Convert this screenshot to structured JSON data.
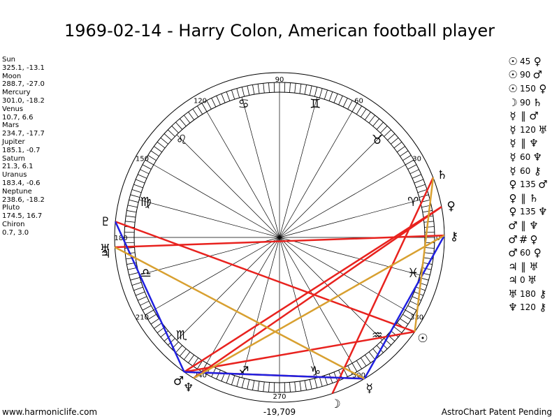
{
  "title": "1969-02-14 - Harry Colon, American football player",
  "planets": [
    {
      "name": "Sun",
      "pos": "325.1, -13.1"
    },
    {
      "name": "Moon",
      "pos": "288.7, -27.0"
    },
    {
      "name": "Mercury",
      "pos": "301.0, -18.2"
    },
    {
      "name": "Venus",
      "pos": "10.7, 6.6"
    },
    {
      "name": "Mars",
      "pos": "234.7, -17.7"
    },
    {
      "name": "Jupiter",
      "pos": "185.1, -0.7"
    },
    {
      "name": "Saturn",
      "pos": "21.3, 6.1"
    },
    {
      "name": "Uranus",
      "pos": "183.4, -0.6"
    },
    {
      "name": "Neptune",
      "pos": "238.6, -18.2"
    },
    {
      "name": "Pluto",
      "pos": "174.5, 16.7"
    },
    {
      "name": "Chiron",
      "pos": "0.7, 3.0"
    }
  ],
  "aspects": [
    {
      "p1": "☉",
      "angle": "45",
      "p2": "♀",
      "p1_color": "#000",
      "p2_color": "#000"
    },
    {
      "p1": "☉",
      "angle": "90",
      "p2": "♂",
      "p1_color": "#000",
      "p2_color": "#000"
    },
    {
      "p1": "☉",
      "angle": "150",
      "p2": "♀",
      "p1_color": "#000",
      "p2_color": "#000"
    },
    {
      "p1": "☽",
      "angle": "90",
      "p2": "♄",
      "p1_color": "#000",
      "p2_color": "#000"
    },
    {
      "p1": "☿",
      "angle": "∥",
      "p2": "♂",
      "p1_color": "#000",
      "p2_color": "#000"
    },
    {
      "p1": "☿",
      "angle": "120",
      "p2": "♅",
      "p1_color": "#000",
      "p2_color": "#000"
    },
    {
      "p1": "☿",
      "angle": "∥",
      "p2": "♆",
      "p1_color": "#000",
      "p2_color": "#000"
    },
    {
      "p1": "☿",
      "angle": "60",
      "p2": "♆",
      "p1_color": "#000",
      "p2_color": "#000"
    },
    {
      "p1": "☿",
      "angle": "60",
      "p2": "⚷",
      "p1_color": "#000",
      "p2_color": "#000"
    },
    {
      "p1": "♀",
      "angle": "135",
      "p2": "♂",
      "p1_color": "#000",
      "p2_color": "#000"
    },
    {
      "p1": "♀",
      "angle": "∥",
      "p2": "♄",
      "p1_color": "#000",
      "p2_color": "#000"
    },
    {
      "p1": "♀",
      "angle": "135",
      "p2": "♆",
      "p1_color": "#000",
      "p2_color": "#000"
    },
    {
      "p1": "♂",
      "angle": "∥",
      "p2": "♆",
      "p1_color": "#000",
      "p2_color": "#000"
    },
    {
      "p1": "♂",
      "angle": "#",
      "p2": "♀",
      "p1_color": "#000",
      "p2_color": "#000"
    },
    {
      "p1": "♂",
      "angle": "60",
      "p2": "♀",
      "p1_color": "#000",
      "p2_color": "#000"
    },
    {
      "p1": "♃",
      "angle": "∥",
      "p2": "♅",
      "p1_color": "#000",
      "p2_color": "#000"
    },
    {
      "p1": "♃",
      "angle": "0",
      "p2": "♅",
      "p1_color": "#000",
      "p2_color": "#000"
    },
    {
      "p1": "♅",
      "angle": "180",
      "p2": "⚷",
      "p1_color": "#000",
      "p2_color": "#000"
    },
    {
      "p1": "♆",
      "angle": "120",
      "p2": "⚷",
      "p1_color": "#000",
      "p2_color": "#000"
    }
  ],
  "wheel": {
    "degree_labels": [
      {
        "deg": 0,
        "text": "0"
      },
      {
        "deg": 30,
        "text": "30"
      },
      {
        "deg": 60,
        "text": "60"
      },
      {
        "deg": 90,
        "text": "90"
      },
      {
        "deg": 120,
        "text": "120"
      },
      {
        "deg": 150,
        "text": "150"
      },
      {
        "deg": 180,
        "text": "180"
      },
      {
        "deg": 210,
        "text": "210"
      },
      {
        "deg": 240,
        "text": "240"
      },
      {
        "deg": 270,
        "text": "270"
      },
      {
        "deg": 300,
        "text": "300"
      },
      {
        "deg": 330,
        "text": "330"
      }
    ],
    "signs": [
      {
        "deg": 15,
        "glyph": "♈"
      },
      {
        "deg": 45,
        "glyph": "♉"
      },
      {
        "deg": 75,
        "glyph": "♊"
      },
      {
        "deg": 105,
        "glyph": "♋"
      },
      {
        "deg": 135,
        "glyph": "♌"
      },
      {
        "deg": 165,
        "glyph": "♍"
      },
      {
        "deg": 195,
        "glyph": "♎"
      },
      {
        "deg": 225,
        "glyph": "♏"
      },
      {
        "deg": 255,
        "glyph": "♐"
      },
      {
        "deg": 285,
        "glyph": "♑"
      },
      {
        "deg": 315,
        "glyph": "♒"
      },
      {
        "deg": 345,
        "glyph": "♓"
      }
    ],
    "planet_glyphs": [
      {
        "name": "Sun",
        "glyph": "☉",
        "deg": 325.1
      },
      {
        "name": "Moon",
        "glyph": "☽",
        "deg": 288.7
      },
      {
        "name": "Mercury",
        "glyph": "☿",
        "deg": 301.0
      },
      {
        "name": "Venus",
        "glyph": "♀",
        "deg": 10.7
      },
      {
        "name": "Mars",
        "glyph": "♂",
        "deg": 234.7
      },
      {
        "name": "Jupiter",
        "glyph": "♃",
        "deg": 185.1
      },
      {
        "name": "Saturn",
        "glyph": "♄",
        "deg": 21.3
      },
      {
        "name": "Uranus",
        "glyph": "♅",
        "deg": 183.4
      },
      {
        "name": "Neptune",
        "glyph": "♆",
        "deg": 238.6
      },
      {
        "name": "Pluto",
        "glyph": "♇",
        "deg": 174.5
      },
      {
        "name": "Chiron",
        "glyph": "⚷",
        "deg": 0.7
      }
    ],
    "aspect_lines": [
      {
        "a": 21.3,
        "b": 288.7,
        "color": "#e8221e"
      },
      {
        "a": 10.7,
        "b": 234.7,
        "color": "#e8221e"
      },
      {
        "a": 10.7,
        "b": 238.6,
        "color": "#e8221e"
      },
      {
        "a": 0.7,
        "b": 183.4,
        "color": "#e8221e"
      },
      {
        "a": 174.5,
        "b": 325.1,
        "color": "#e8221e"
      },
      {
        "a": 234.7,
        "b": 325.1,
        "color": "#e8221e"
      },
      {
        "a": 234.7,
        "b": 301.0,
        "color": "#e8221e"
      },
      {
        "a": 174.5,
        "b": 234.7,
        "color": "#2020e0"
      },
      {
        "a": 234.7,
        "b": 301.0,
        "color": "#2020e0"
      },
      {
        "a": 301.0,
        "b": 0.7,
        "color": "#2020e0"
      },
      {
        "a": 183.4,
        "b": 301.0,
        "color": "#d8a030"
      },
      {
        "a": 0.7,
        "b": 238.6,
        "color": "#d8a030"
      },
      {
        "a": 21.3,
        "b": 325.1,
        "color": "#d8a030"
      }
    ]
  },
  "footer": {
    "left": "www.harmoniclife.com",
    "center": "-19,709",
    "right": "AstroChart Patent Pending"
  }
}
